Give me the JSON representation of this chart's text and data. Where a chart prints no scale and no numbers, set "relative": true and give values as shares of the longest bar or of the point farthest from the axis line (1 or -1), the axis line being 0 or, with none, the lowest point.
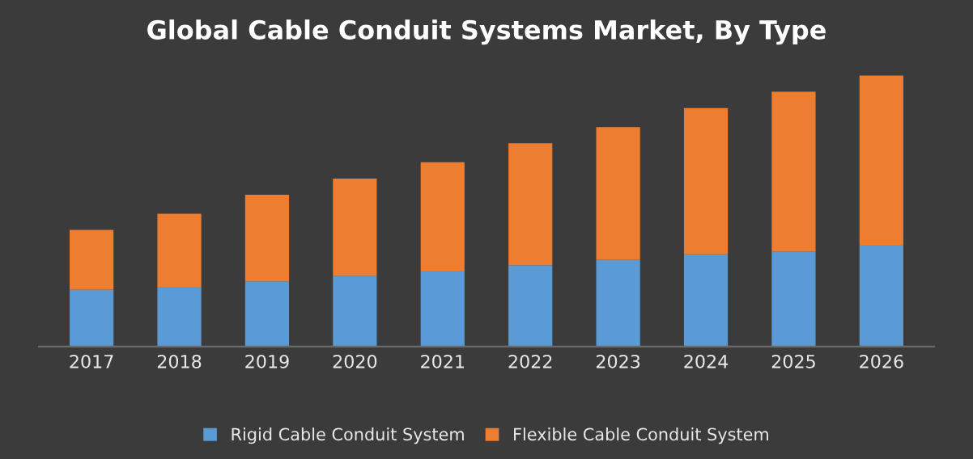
{
  "chart_data": {
    "type": "bar",
    "title": "Global Cable Conduit Systems Market, By Type",
    "relative": true,
    "stacked": true,
    "legend": "bottom",
    "categories": [
      "2017",
      "2018",
      "2019",
      "2020",
      "2021",
      "2022",
      "2023",
      "2024",
      "2025",
      "2026"
    ],
    "series": [
      {
        "name": "Rigid Cable Conduit System",
        "color": "#5b9bd5",
        "values": [
          0.21,
          0.22,
          0.24,
          0.26,
          0.28,
          0.3,
          0.32,
          0.34,
          0.35,
          0.375
        ]
      },
      {
        "name": "Flexible Cable Conduit System",
        "color": "#ed7d31",
        "values": [
          0.22,
          0.27,
          0.32,
          0.36,
          0.4,
          0.45,
          0.49,
          0.54,
          0.59,
          0.625
        ]
      }
    ]
  }
}
